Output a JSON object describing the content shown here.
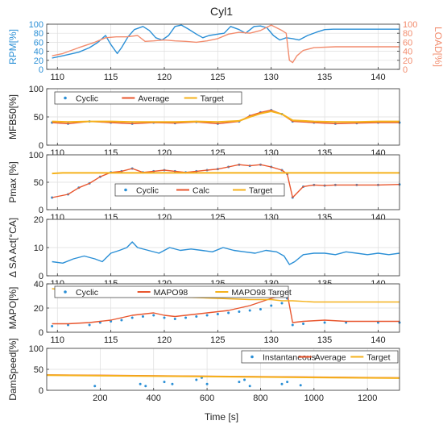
{
  "figure": {
    "title": "Cyl1",
    "xlabel": "Time [s]"
  },
  "chart_data": [
    {
      "type": "line",
      "panel": "rpm-load",
      "ylabel": "RPM[%]",
      "ylabel_right": "LOAD[%]",
      "xlim": [
        109,
        142
      ],
      "ylim": [
        0,
        100
      ],
      "ylim_right": [
        0,
        100
      ],
      "xticks": [
        110,
        115,
        120,
        125,
        130,
        135,
        140
      ],
      "yticks": [
        0,
        20,
        40,
        60,
        80,
        100
      ],
      "yticks_right": [
        0,
        20,
        40,
        60,
        80,
        100
      ],
      "grid": true,
      "colors": {
        "left": "#2a8fd6",
        "right": "#f28c6e"
      },
      "series": [
        {
          "axis": "left",
          "x": [
            109.5,
            110.5,
            112,
            113,
            113.8,
            114.5,
            115,
            115.6,
            116,
            116.6,
            117.2,
            118,
            118.6,
            119.2,
            119.8,
            120.4,
            121,
            121.6,
            122.2,
            123,
            123.6,
            124.2,
            125,
            125.6,
            126.2,
            127,
            127.6,
            128.4,
            129,
            129.6,
            130.2,
            130.8,
            131.4,
            132,
            132.6,
            133.4,
            134.2,
            135,
            135.8,
            137,
            138.5,
            140,
            141.5,
            142
          ],
          "y": [
            25,
            30,
            38,
            48,
            60,
            75,
            55,
            35,
            48,
            72,
            88,
            95,
            86,
            70,
            65,
            75,
            95,
            98,
            90,
            78,
            70,
            75,
            78,
            80,
            95,
            88,
            80,
            95,
            96,
            92,
            75,
            65,
            70,
            68,
            65,
            75,
            82,
            88,
            89,
            89,
            89,
            89,
            89,
            89
          ]
        },
        {
          "axis": "right",
          "x": [
            109.5,
            110.5,
            112,
            113.5,
            114.5,
            115.5,
            116.5,
            117.5,
            118.2,
            119,
            120,
            121,
            122,
            123,
            124,
            125,
            126,
            127,
            128,
            129,
            130,
            131,
            131.4,
            131.7,
            132,
            132.4,
            133,
            134,
            136,
            138,
            140,
            142
          ],
          "y": [
            30,
            35,
            48,
            60,
            70,
            72,
            72,
            75,
            62,
            63,
            65,
            63,
            62,
            60,
            63,
            68,
            78,
            82,
            80,
            86,
            98,
            86,
            80,
            20,
            15,
            30,
            42,
            48,
            50,
            50,
            50,
            50
          ]
        }
      ]
    },
    {
      "type": "scatter",
      "panel": "mfb50",
      "ylabel": "MFB50[%]",
      "xlim": [
        109,
        142
      ],
      "ylim": [
        0,
        100
      ],
      "xticks": [
        110,
        115,
        120,
        125,
        130,
        135,
        140
      ],
      "yticks": [
        0,
        50,
        100
      ],
      "grid": true,
      "legend": "top-left",
      "series": [
        {
          "name": "Cyclic",
          "kind": "scatter",
          "color": "#2a8fd6",
          "x": [
            109.5,
            111,
            113,
            115,
            117,
            119,
            121,
            123,
            125,
            127,
            128,
            129,
            130,
            131,
            132,
            134,
            136,
            138,
            140,
            142
          ],
          "y": [
            40,
            38,
            42,
            40,
            38,
            40,
            39,
            41,
            38,
            42,
            52,
            58,
            62,
            55,
            42,
            40,
            38,
            39,
            40,
            40
          ]
        },
        {
          "name": "Average",
          "kind": "line",
          "color": "#e8562e",
          "x": [
            109.5,
            111,
            113,
            115,
            117,
            119,
            121,
            123,
            125,
            127,
            128,
            129,
            130,
            131,
            132,
            134,
            136,
            138,
            140,
            142
          ],
          "y": [
            40,
            38,
            42,
            40,
            38,
            40,
            39,
            41,
            38,
            42,
            52,
            58,
            62,
            55,
            42,
            40,
            38,
            39,
            40,
            40
          ]
        },
        {
          "name": "Target",
          "kind": "line",
          "color": "#f5b21c",
          "x": [
            109.5,
            111,
            113,
            115,
            117,
            119,
            121,
            123,
            125,
            127,
            128,
            129,
            130,
            131,
            132,
            134,
            136,
            138,
            140,
            142
          ],
          "y": [
            42,
            41,
            42,
            42,
            41,
            41,
            41,
            42,
            41,
            43,
            50,
            56,
            60,
            55,
            44,
            42,
            41,
            41,
            42,
            42
          ]
        }
      ]
    },
    {
      "type": "scatter",
      "panel": "pmax",
      "ylabel": "Pmax [%]",
      "xlim": [
        109,
        142
      ],
      "ylim": [
        0,
        100
      ],
      "xticks": [
        110,
        115,
        120,
        125,
        130,
        135,
        140
      ],
      "yticks": [
        0,
        50,
        100
      ],
      "grid": true,
      "legend": "bottom-center",
      "series": [
        {
          "name": "Cyclic",
          "kind": "scatter",
          "color": "#2a8fd6",
          "x": [
            109.5,
            111,
            112,
            113,
            114,
            115,
            116,
            117,
            118,
            119,
            120,
            121,
            122,
            123,
            124,
            125,
            126,
            127,
            128,
            129,
            130,
            131,
            131.5,
            132,
            133,
            134,
            135,
            136,
            138,
            140,
            142
          ],
          "y": [
            22,
            28,
            40,
            48,
            60,
            68,
            70,
            75,
            68,
            70,
            72,
            70,
            68,
            70,
            72,
            74,
            78,
            82,
            80,
            82,
            78,
            72,
            65,
            22,
            42,
            45,
            44,
            45,
            45,
            45,
            46
          ]
        },
        {
          "name": "Calc",
          "kind": "line",
          "color": "#e8562e",
          "x": [
            109.5,
            111,
            112,
            113,
            114,
            115,
            116,
            117,
            118,
            119,
            120,
            121,
            122,
            123,
            124,
            125,
            126,
            127,
            128,
            129,
            130,
            131,
            131.5,
            132,
            133,
            134,
            135,
            136,
            138,
            140,
            142
          ],
          "y": [
            22,
            28,
            40,
            48,
            60,
            68,
            70,
            75,
            68,
            70,
            72,
            70,
            68,
            70,
            72,
            74,
            78,
            82,
            80,
            82,
            78,
            72,
            65,
            22,
            42,
            45,
            44,
            45,
            45,
            45,
            46
          ]
        },
        {
          "name": "Target",
          "kind": "line",
          "color": "#f5b21c",
          "x": [
            109.5,
            110.5,
            142
          ],
          "y": [
            66,
            67,
            67
          ]
        }
      ]
    },
    {
      "type": "line",
      "panel": "sa-act",
      "ylabel": "Δ SA Act[°CA]",
      "xlim": [
        109,
        142
      ],
      "ylim": [
        0,
        20
      ],
      "xticks": [
        110,
        115,
        120,
        125,
        130,
        135,
        140
      ],
      "yticks": [
        0,
        10,
        20
      ],
      "grid": true,
      "series": [
        {
          "color": "#2a8fd6",
          "x": [
            109.5,
            110.5,
            111.5,
            112.5,
            113.5,
            114.2,
            115,
            115.8,
            116.5,
            117,
            117.5,
            118.5,
            119.5,
            120.5,
            121.5,
            122.5,
            123.5,
            124.5,
            125.5,
            126.5,
            127.5,
            128.5,
            129.5,
            130.5,
            131.2,
            131.7,
            132.2,
            133,
            134,
            135,
            136,
            137,
            138,
            139,
            140,
            141,
            142
          ],
          "y": [
            5,
            4.5,
            6,
            7,
            6,
            5,
            8,
            9,
            10,
            12,
            10,
            9,
            8,
            10,
            9,
            9.5,
            9,
            8.5,
            10,
            9,
            8.5,
            8,
            9,
            8.5,
            7,
            4,
            5,
            7.5,
            8,
            8,
            7.5,
            8.5,
            8,
            7.5,
            8,
            7.5,
            8
          ]
        }
      ]
    },
    {
      "type": "scatter",
      "panel": "mapo",
      "ylabel": "MAPO[%]",
      "xlim": [
        109,
        142
      ],
      "ylim": [
        0,
        40
      ],
      "xticks": [
        110,
        115,
        120,
        125,
        130,
        135,
        140
      ],
      "yticks": [
        0,
        20,
        40
      ],
      "grid": true,
      "legend": "top-left",
      "series": [
        {
          "name": "Cyclic",
          "kind": "scatter",
          "color": "#2a8fd6",
          "x": [
            109.5,
            111,
            113,
            114,
            115,
            116,
            117,
            118,
            119,
            120,
            121,
            122,
            123,
            124,
            125,
            126,
            127,
            128,
            129,
            130,
            131,
            131.5,
            132,
            133,
            135,
            137,
            140,
            142
          ],
          "y": [
            5,
            6,
            6,
            8,
            9,
            10,
            12,
            13,
            14,
            12,
            11,
            12,
            13,
            14,
            15,
            16,
            17,
            18,
            19,
            22,
            24,
            28,
            6,
            7,
            8,
            8,
            8,
            8
          ]
        },
        {
          "name": "MAPO98",
          "kind": "line",
          "color": "#e8562e",
          "x": [
            109.5,
            111,
            113,
            114,
            115,
            116,
            117,
            118,
            119,
            120,
            121,
            122,
            123,
            124,
            125,
            126,
            127,
            128,
            129,
            130,
            131,
            131.5,
            132,
            133,
            135,
            137,
            140,
            142
          ],
          "y": [
            7,
            7,
            8,
            9,
            10,
            12,
            14,
            15,
            16,
            14,
            13,
            14,
            15,
            16,
            17,
            18,
            20,
            22,
            25,
            28,
            30,
            32,
            8,
            9,
            10,
            9,
            9,
            9
          ]
        },
        {
          "name": "MAPO98 Target",
          "kind": "line",
          "color": "#f5b21c",
          "x": [
            109.5,
            110.5,
            111.5,
            113,
            115,
            117,
            118,
            120,
            122,
            125,
            128,
            130,
            131,
            132,
            134,
            136,
            138,
            140,
            142
          ],
          "y": [
            36,
            35,
            34,
            33,
            32,
            31,
            30,
            30,
            29,
            28,
            27,
            27,
            26,
            26,
            25,
            25,
            25,
            25,
            25
          ]
        }
      ]
    },
    {
      "type": "scatter",
      "panel": "damspeed",
      "ylabel": "DamSpeed[%]",
      "xlim": [
        0,
        1320
      ],
      "ylim": [
        0,
        100
      ],
      "xticks": [
        200,
        400,
        600,
        800,
        1000,
        1200
      ],
      "yticks": [
        0,
        50,
        100
      ],
      "grid": true,
      "legend": "top-right",
      "series": [
        {
          "name": "Instantaneous",
          "kind": "scatter",
          "color": "#2a8fd6",
          "x": [
            180,
            350,
            370,
            440,
            470,
            560,
            580,
            600,
            720,
            740,
            760,
            880,
            900,
            950
          ],
          "y": [
            10,
            15,
            10,
            20,
            15,
            25,
            30,
            15,
            20,
            25,
            10,
            15,
            20,
            12
          ]
        },
        {
          "name": "Average",
          "kind": "line",
          "color": "#e8562e",
          "x": [
            0,
            1320
          ],
          "y": [
            37,
            30
          ]
        },
        {
          "name": "Target",
          "kind": "line",
          "color": "#f5b21c",
          "x": [
            0,
            1320
          ],
          "y": [
            36,
            29
          ]
        }
      ]
    }
  ]
}
